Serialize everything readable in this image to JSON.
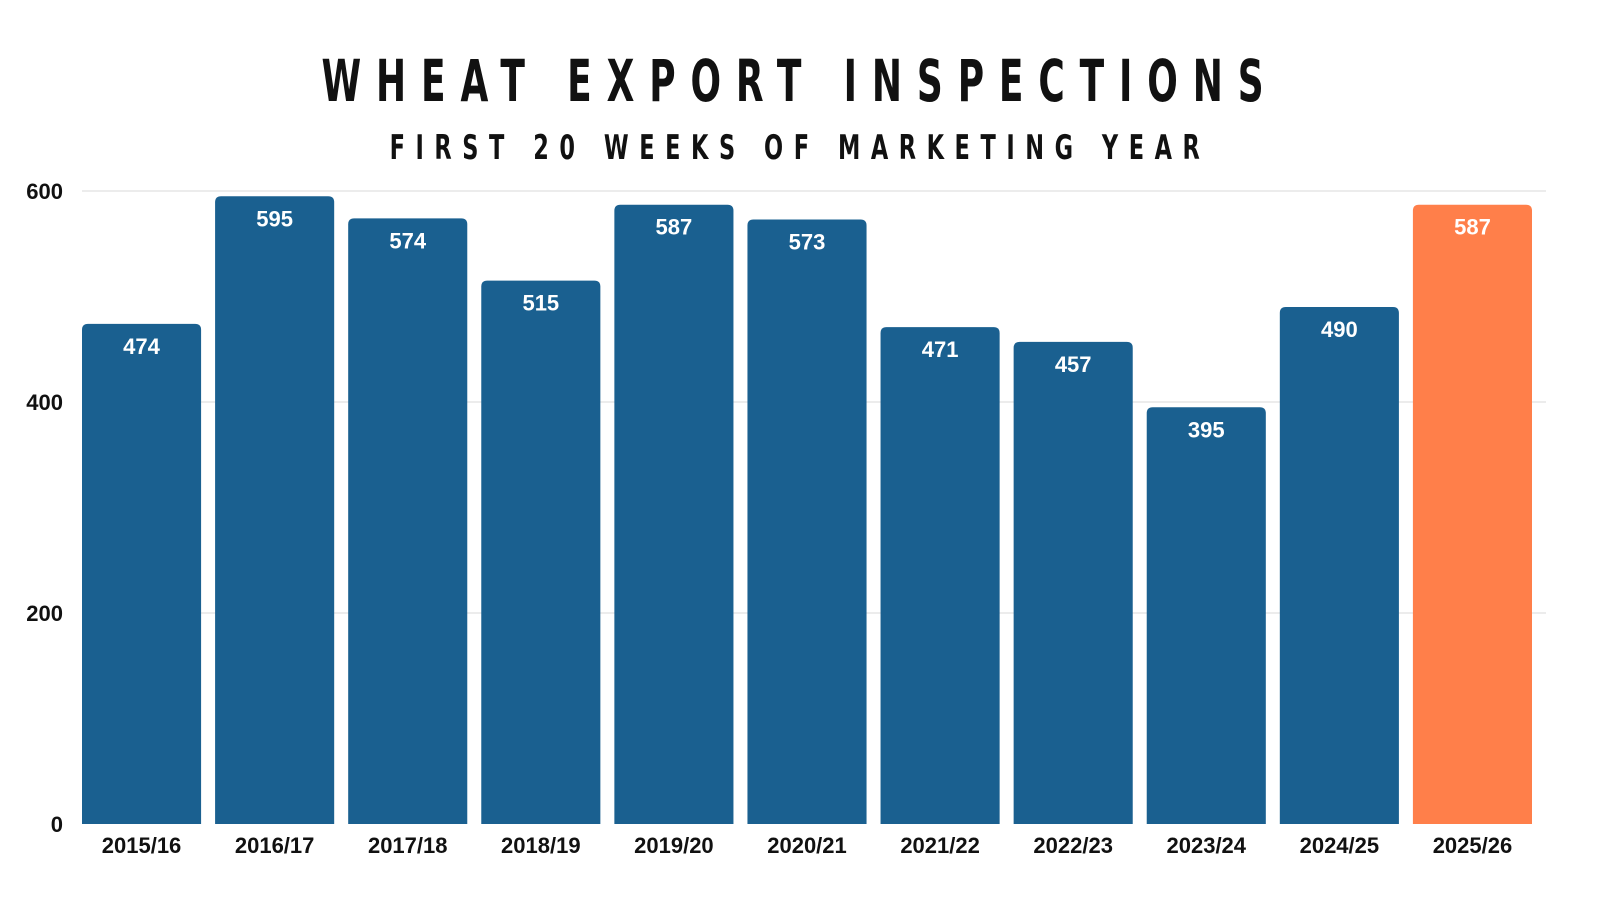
{
  "chart_data": {
    "type": "bar",
    "title": "WHEAT EXPORT INSPECTIONS",
    "subtitle": "FIRST 20 WEEKS OF MARKETING YEAR",
    "xlabel": "",
    "ylabel": "",
    "ylim": [
      0,
      600
    ],
    "yticks": [
      0,
      200,
      400,
      600
    ],
    "grid": true,
    "categories": [
      "2015/16",
      "2016/17",
      "2017/18",
      "2018/19",
      "2019/20",
      "2020/21",
      "2021/22",
      "2022/23",
      "2023/24",
      "2024/25",
      "2025/26"
    ],
    "values": [
      474,
      595,
      574,
      515,
      587,
      573,
      471,
      457,
      395,
      490,
      587
    ],
    "colors": {
      "bar": "#1a6090",
      "highlight": "#ff7f4a",
      "grid": "#d9d9d9"
    },
    "highlight_index": 10
  }
}
